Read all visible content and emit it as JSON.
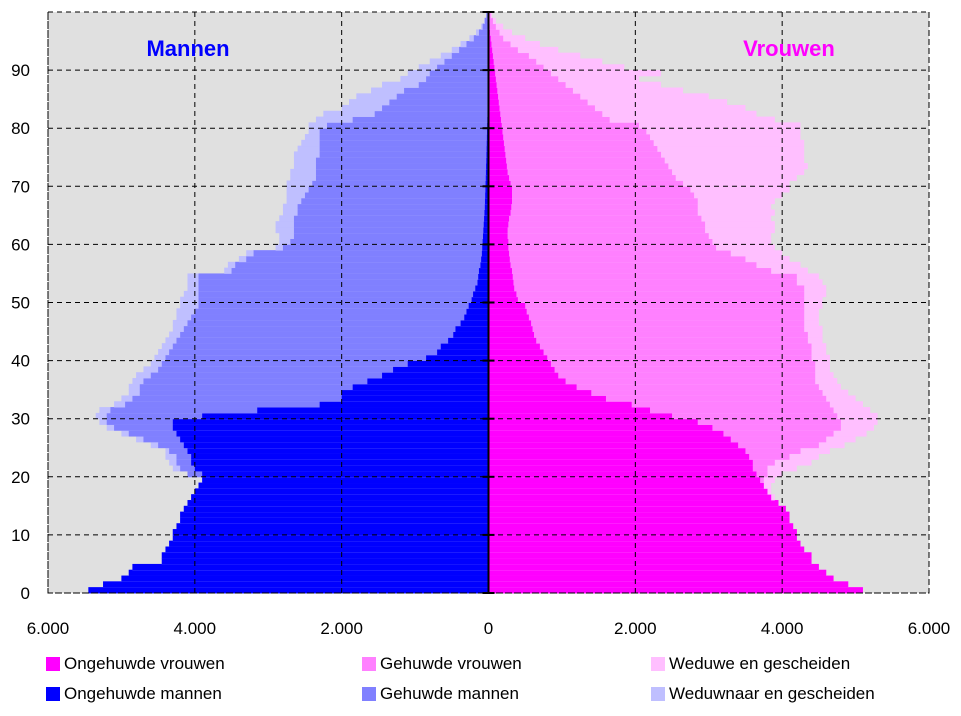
{
  "chart_data": {
    "type": "population-pyramid",
    "left_title": "Mannen",
    "right_title": "Vrouwen",
    "x_ticks": [
      "6.000",
      "4.000",
      "2.000",
      "0",
      "2.000",
      "4.000",
      "6.000"
    ],
    "x_range": [
      0,
      6000
    ],
    "y_ticks": [
      "0",
      "10",
      "20",
      "30",
      "40",
      "50",
      "60",
      "70",
      "80",
      "90"
    ],
    "y_range": [
      0,
      100
    ],
    "grid": true,
    "colors": {
      "ongehuwde_vrouwen": "#ff00ff",
      "gehuwde_vrouwen": "#ff80ff",
      "weduwe": "#ffbfff",
      "ongehuwde_mannen": "#0000ff",
      "gehuwde_mannen": "#8080ff",
      "weduwnaar": "#bfbfff",
      "plot_bg": "#e0e0e0",
      "title_men": "#0000ff",
      "title_women": "#ff00ff"
    },
    "ages": [
      0,
      1,
      2,
      3,
      4,
      5,
      6,
      7,
      8,
      9,
      10,
      11,
      12,
      13,
      14,
      15,
      16,
      17,
      18,
      19,
      20,
      21,
      22,
      23,
      24,
      25,
      26,
      27,
      28,
      29,
      30,
      31,
      32,
      33,
      34,
      35,
      36,
      37,
      38,
      39,
      40,
      41,
      42,
      43,
      44,
      45,
      46,
      47,
      48,
      49,
      50,
      51,
      52,
      53,
      54,
      55,
      56,
      57,
      58,
      59,
      60,
      61,
      62,
      63,
      64,
      65,
      66,
      67,
      68,
      69,
      70,
      71,
      72,
      73,
      74,
      75,
      76,
      77,
      78,
      79,
      80,
      81,
      82,
      83,
      84,
      85,
      86,
      87,
      88,
      89,
      90,
      91,
      92,
      93,
      94,
      95,
      96,
      97,
      98,
      99
    ],
    "men": {
      "ongehuwd_cum": [
        5450,
        5250,
        5000,
        4900,
        4850,
        4450,
        4450,
        4400,
        4350,
        4300,
        4300,
        4250,
        4200,
        4200,
        4150,
        4100,
        4050,
        4000,
        3950,
        3900,
        3900,
        4000,
        4050,
        4050,
        4100,
        4150,
        4200,
        4250,
        4300,
        4300,
        3900,
        3150,
        2300,
        2000,
        2000,
        1850,
        1650,
        1450,
        1300,
        1100,
        850,
        700,
        650,
        550,
        480,
        450,
        380,
        330,
        300,
        270,
        230,
        210,
        180,
        150,
        140,
        130,
        110,
        100,
        90,
        85,
        80,
        75,
        70,
        65,
        60,
        55,
        50,
        48,
        45,
        42,
        40,
        37,
        35,
        33,
        30,
        28,
        26,
        24,
        22,
        20,
        18,
        16,
        14,
        12,
        10,
        9,
        8,
        7,
        6,
        5,
        4,
        3,
        3,
        2,
        2,
        1,
        1,
        1,
        1,
        1
      ],
      "gehuwd_cum": [
        5450,
        5250,
        5000,
        4900,
        4850,
        4450,
        4450,
        4400,
        4350,
        4300,
        4300,
        4250,
        4200,
        4200,
        4150,
        4100,
        4050,
        4000,
        3950,
        3900,
        4100,
        4200,
        4250,
        4250,
        4350,
        4500,
        4700,
        4900,
        5100,
        5200,
        5200,
        5150,
        4950,
        4850,
        4750,
        4750,
        4700,
        4600,
        4500,
        4450,
        4400,
        4350,
        4300,
        4250,
        4200,
        4150,
        4100,
        4050,
        4000,
        3950,
        3950,
        3950,
        3950,
        3950,
        3950,
        3500,
        3450,
        3300,
        3200,
        2800,
        2700,
        2650,
        2650,
        2650,
        2650,
        2600,
        2600,
        2550,
        2500,
        2450,
        2400,
        2350,
        2350,
        2350,
        2350,
        2300,
        2300,
        2300,
        2300,
        2300,
        2200,
        1850,
        1550,
        1450,
        1350,
        1250,
        1150,
        950,
        850,
        800,
        700,
        600,
        500,
        400,
        300,
        200,
        130,
        80,
        50,
        30
      ],
      "weduw_cum": [
        5450,
        5250,
        5000,
        4900,
        4850,
        4450,
        4450,
        4400,
        4350,
        4300,
        4300,
        4250,
        4200,
        4200,
        4150,
        4100,
        4050,
        4000,
        3950,
        3900,
        4100,
        4300,
        4350,
        4400,
        4400,
        4600,
        4800,
        5000,
        5200,
        5300,
        5350,
        5300,
        5100,
        5000,
        4900,
        4900,
        4850,
        4800,
        4700,
        4600,
        4550,
        4500,
        4450,
        4400,
        4350,
        4300,
        4300,
        4250,
        4250,
        4200,
        4200,
        4150,
        4100,
        4100,
        4100,
        3600,
        3550,
        3400,
        3300,
        2900,
        2850,
        2850,
        2900,
        2900,
        2850,
        2800,
        2800,
        2750,
        2750,
        2750,
        2750,
        2700,
        2700,
        2650,
        2650,
        2650,
        2600,
        2550,
        2500,
        2450,
        2450,
        2350,
        2250,
        2000,
        1900,
        1800,
        1600,
        1450,
        1200,
        1100,
        950,
        800,
        650,
        500,
        380,
        260,
        170,
        100,
        60,
        30
      ]
    },
    "women": {
      "ongehuwd_cum": [
        5100,
        4900,
        4700,
        4600,
        4500,
        4400,
        4400,
        4300,
        4250,
        4200,
        4200,
        4150,
        4100,
        4100,
        4050,
        3950,
        3850,
        3800,
        3750,
        3700,
        3650,
        3600,
        3600,
        3550,
        3500,
        3400,
        3300,
        3200,
        3050,
        2850,
        2500,
        2200,
        1950,
        1600,
        1400,
        1200,
        1050,
        950,
        900,
        850,
        800,
        750,
        700,
        650,
        620,
        600,
        580,
        550,
        520,
        500,
        400,
        380,
        350,
        340,
        330,
        320,
        300,
        290,
        280,
        270,
        270,
        260,
        260,
        270,
        280,
        300,
        310,
        320,
        320,
        320,
        300,
        280,
        260,
        250,
        240,
        230,
        220,
        210,
        200,
        190,
        180,
        170,
        160,
        150,
        140,
        130,
        120,
        110,
        100,
        90,
        80,
        70,
        60,
        50,
        40,
        30,
        20,
        15,
        10,
        5
      ],
      "gehuwd_cum": [
        5100,
        4900,
        4700,
        4600,
        4500,
        4400,
        4400,
        4300,
        4250,
        4200,
        4200,
        4150,
        4100,
        4100,
        4050,
        3950,
        3850,
        3800,
        3750,
        3750,
        3800,
        3800,
        3900,
        4100,
        4250,
        4500,
        4600,
        4700,
        4800,
        4800,
        4750,
        4700,
        4650,
        4600,
        4550,
        4500,
        4450,
        4450,
        4450,
        4450,
        4400,
        4400,
        4400,
        4350,
        4350,
        4300,
        4300,
        4300,
        4300,
        4300,
        4300,
        4300,
        4300,
        4200,
        4200,
        3850,
        3650,
        3500,
        3300,
        3100,
        3050,
        3000,
        2950,
        2950,
        2900,
        2850,
        2850,
        2850,
        2800,
        2750,
        2650,
        2550,
        2500,
        2450,
        2400,
        2350,
        2300,
        2250,
        2200,
        2150,
        2050,
        1650,
        1550,
        1450,
        1350,
        1250,
        1150,
        1050,
        950,
        850,
        750,
        650,
        550,
        400,
        300,
        200,
        150,
        100,
        60,
        30
      ],
      "weduwe_cum": [
        5100,
        4900,
        4700,
        4600,
        4500,
        4400,
        4400,
        4300,
        4250,
        4200,
        4200,
        4150,
        4100,
        4100,
        4050,
        3950,
        3900,
        3850,
        3850,
        3900,
        4000,
        4200,
        4400,
        4500,
        4650,
        4850,
        5000,
        5150,
        5250,
        5300,
        5300,
        5200,
        5100,
        5000,
        4900,
        4800,
        4750,
        4700,
        4650,
        4650,
        4650,
        4600,
        4600,
        4550,
        4550,
        4550,
        4500,
        4500,
        4500,
        4550,
        4550,
        4600,
        4600,
        4550,
        4500,
        4350,
        4250,
        4100,
        4000,
        3900,
        3850,
        3850,
        3900,
        3900,
        3850,
        3900,
        3850,
        3900,
        4000,
        4100,
        4100,
        4200,
        4300,
        4350,
        4300,
        4300,
        4300,
        4300,
        4250,
        4250,
        4250,
        3900,
        3650,
        3500,
        3250,
        3000,
        2650,
        2350,
        2050,
        2350,
        1850,
        1550,
        1250,
        950,
        700,
        500,
        320,
        200,
        100,
        50
      ]
    },
    "legend": [
      {
        "label": "Ongehuwde vrouwen",
        "color": "#ff00ff"
      },
      {
        "label": "Gehuwde vrouwen",
        "color": "#ff80ff"
      },
      {
        "label": "Weduwe en gescheiden",
        "color": "#ffbfff"
      },
      {
        "label": "Ongehuwde mannen",
        "color": "#0000ff"
      },
      {
        "label": "Gehuwde mannen",
        "color": "#8080ff"
      },
      {
        "label": "Weduwnaar en gescheiden",
        "color": "#bfbfff"
      }
    ]
  }
}
